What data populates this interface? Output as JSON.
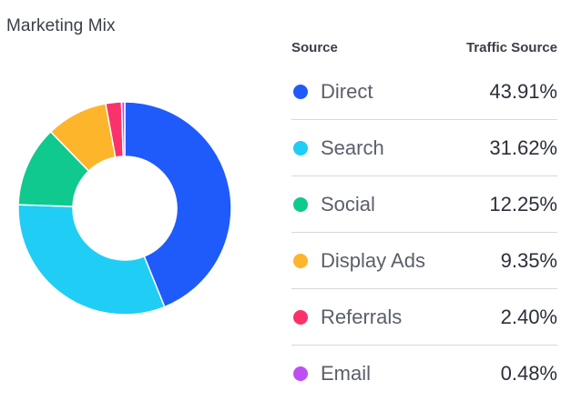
{
  "title": "Marketing Mix",
  "chart_data": {
    "type": "pie",
    "variant": "donut",
    "title": "Marketing Mix",
    "legend_header": {
      "source": "Source",
      "value": "Traffic Source"
    },
    "categories": [
      "Direct",
      "Search",
      "Social",
      "Display Ads",
      "Referrals",
      "Email"
    ],
    "values": [
      43.91,
      31.62,
      12.25,
      9.35,
      2.4,
      0.48
    ],
    "value_labels": [
      "43.91%",
      "31.62%",
      "12.25%",
      "9.35%",
      "2.40%",
      "0.48%"
    ],
    "colors": [
      "#1f5bfa",
      "#20cdf5",
      "#10c98f",
      "#fdb52c",
      "#fb3269",
      "#bd4ef3"
    ],
    "unit": "%"
  }
}
